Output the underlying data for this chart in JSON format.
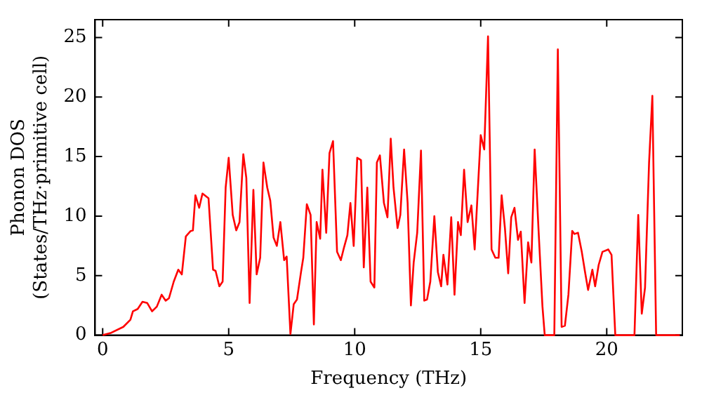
{
  "chart_data": {
    "type": "line",
    "xlabel": "Frequency (THz)",
    "ylabel": "Phonon DOS\n(States/THz·primitive cell)",
    "xlim": [
      -0.3,
      23
    ],
    "ylim": [
      0,
      26.5
    ],
    "xticks": [
      0,
      5,
      10,
      15,
      20
    ],
    "yticks": [
      0,
      5,
      10,
      15,
      20,
      25
    ],
    "grid": false,
    "legend": false,
    "marker": "none",
    "line_style": "solid",
    "series": [
      {
        "color": "#ff0000",
        "x": [
          0,
          0.34,
          0.82,
          1.1,
          1.2,
          1.39,
          1.58,
          1.77,
          1.96,
          2.15,
          2.34,
          2.5,
          2.63,
          2.82,
          3.0,
          3.14,
          3.3,
          3.49,
          3.58,
          3.68,
          3.83,
          3.96,
          4.2,
          4.38,
          4.48,
          4.63,
          4.76,
          4.88,
          5.0,
          5.16,
          5.3,
          5.43,
          5.58,
          5.7,
          5.83,
          5.98,
          6.11,
          6.25,
          6.38,
          6.53,
          6.65,
          6.78,
          6.91,
          7.05,
          7.2,
          7.3,
          7.45,
          7.58,
          7.71,
          7.87,
          7.96,
          8.1,
          8.25,
          8.38,
          8.49,
          8.63,
          8.72,
          8.87,
          9.0,
          9.14,
          9.3,
          9.45,
          9.58,
          9.71,
          9.83,
          9.96,
          10.1,
          10.25,
          10.36,
          10.5,
          10.63,
          10.78,
          10.88,
          11.0,
          11.16,
          11.3,
          11.43,
          11.54,
          11.7,
          11.81,
          11.96,
          12.1,
          12.23,
          12.34,
          12.48,
          12.63,
          12.76,
          12.87,
          13.0,
          13.16,
          13.3,
          13.43,
          13.52,
          13.68,
          13.83,
          13.96,
          14.1,
          14.21,
          14.34,
          14.48,
          14.63,
          14.76,
          15.0,
          15.14,
          15.29,
          15.43,
          15.58,
          15.71,
          15.83,
          15.96,
          16.09,
          16.21,
          16.34,
          16.48,
          16.59,
          16.74,
          16.88,
          17.01,
          17.14,
          17.3,
          17.45,
          17.54,
          17.92,
          18.06,
          18.21,
          18.34,
          18.48,
          18.63,
          18.72,
          18.86,
          19.01,
          19.14,
          19.26,
          19.43,
          19.54,
          19.68,
          19.83,
          20.06,
          20.19,
          20.34,
          21.1,
          21.25,
          21.39,
          21.52,
          21.68,
          21.81,
          21.96,
          22.9
        ],
        "values": [
          0,
          0.2,
          0.7,
          1.3,
          2.0,
          2.2,
          2.8,
          2.7,
          2.0,
          2.4,
          3.4,
          2.9,
          3.1,
          4.5,
          5.5,
          5.1,
          8.3,
          8.75,
          8.8,
          11.75,
          10.7,
          11.9,
          11.5,
          5.5,
          5.4,
          4.1,
          4.5,
          12.4,
          14.9,
          10.1,
          8.8,
          9.5,
          15.2,
          13.2,
          2.7,
          12.2,
          5.1,
          6.5,
          14.5,
          12.4,
          11.3,
          8.2,
          7.5,
          9.5,
          6.3,
          6.6,
          0.1,
          2.6,
          3.0,
          5.3,
          6.5,
          11.0,
          10.1,
          0.9,
          9.5,
          8.1,
          13.9,
          8.6,
          15.3,
          16.3,
          7.0,
          6.3,
          7.4,
          8.4,
          11.1,
          7.5,
          14.9,
          14.7,
          5.7,
          12.4,
          4.5,
          4.0,
          14.5,
          15.1,
          11.1,
          9.9,
          16.5,
          12.4,
          9.0,
          10.1,
          15.6,
          11.1,
          2.5,
          6.1,
          8.6,
          15.5,
          2.9,
          3.0,
          4.5,
          10.0,
          5.3,
          4.1,
          6.75,
          4.25,
          9.9,
          3.4,
          9.5,
          8.4,
          13.9,
          9.5,
          10.9,
          7.2,
          16.8,
          15.6,
          25.1,
          7.2,
          6.5,
          6.5,
          11.75,
          9.0,
          5.2,
          9.9,
          10.7,
          8.0,
          8.7,
          2.7,
          7.8,
          6.1,
          15.6,
          8.6,
          2.4,
          0,
          0,
          24.0,
          0.7,
          0.8,
          3.4,
          8.75,
          8.5,
          8.6,
          7.0,
          5.3,
          3.8,
          5.5,
          4.1,
          5.9,
          7.0,
          7.2,
          6.75,
          0,
          0,
          10.1,
          1.8,
          4.0,
          14.5,
          20.1,
          0,
          0
        ]
      }
    ]
  }
}
